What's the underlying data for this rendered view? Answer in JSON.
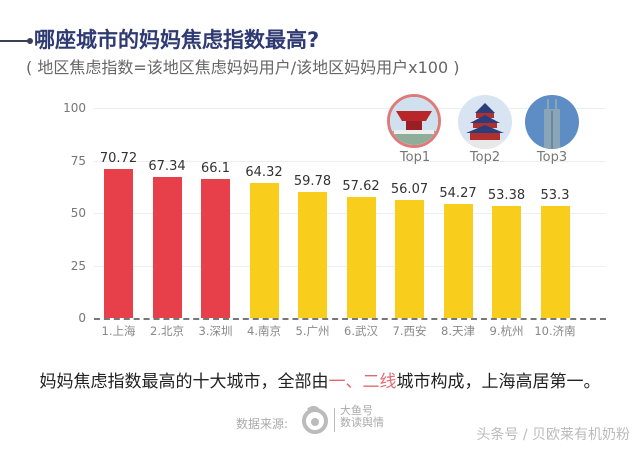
{
  "header": {
    "title": "哪座城市的妈妈焦虑指数最高?",
    "subtitle": "( 地区焦虑指数=该地区焦虑妈妈用户/该地区妈妈用户x100 )"
  },
  "chart_data": {
    "type": "bar",
    "title": "哪座城市的妈妈焦虑指数最高?",
    "subtitle": "( 地区焦虑指数=该地区焦虑妈妈用户/该地区妈妈用户x100 )",
    "categories": [
      "1.上海",
      "2.北京",
      "3.深圳",
      "4.南京",
      "5.广州",
      "6.武汉",
      "7.西安",
      "8.天津",
      "9.杭州",
      "10.济南"
    ],
    "values": [
      70.72,
      67.34,
      66.1,
      64.32,
      59.78,
      57.62,
      56.07,
      54.27,
      53.38,
      53.3
    ],
    "value_labels": [
      "70.72",
      "67.34",
      "66.1",
      "64.32",
      "59.78",
      "57.62",
      "56.07",
      "54.27",
      "53.38",
      "53.3"
    ],
    "bar_colors": [
      "#e8404a",
      "#e8404a",
      "#e8404a",
      "#f9cd1b",
      "#f9cd1b",
      "#f9cd1b",
      "#f9cd1b",
      "#f9cd1b",
      "#f9cd1b",
      "#f9cd1b"
    ],
    "yticks": [
      "0",
      "25",
      "50",
      "75",
      "100"
    ],
    "ylim": [
      0,
      100
    ],
    "xlabel": "",
    "ylabel": "",
    "grid": true,
    "legend": [
      {
        "label": "Top1",
        "icon": "shanghai-china-pavilion-icon"
      },
      {
        "label": "Top2",
        "icon": "beijing-temple-of-heaven-icon"
      },
      {
        "label": "Top3",
        "icon": "shenzhen-skyscraper-icon"
      }
    ]
  },
  "caption": {
    "before": "妈妈焦虑指数最高的十大城市，全部由",
    "highlight": "一、二线",
    "after": "城市构成，上海高居第一。"
  },
  "footer": {
    "source_label": "数据来源:",
    "brand_line1": "大鱼号",
    "brand_line2": "数读舆情",
    "watermark": "头条号 / 贝欧莱有机奶粉"
  }
}
